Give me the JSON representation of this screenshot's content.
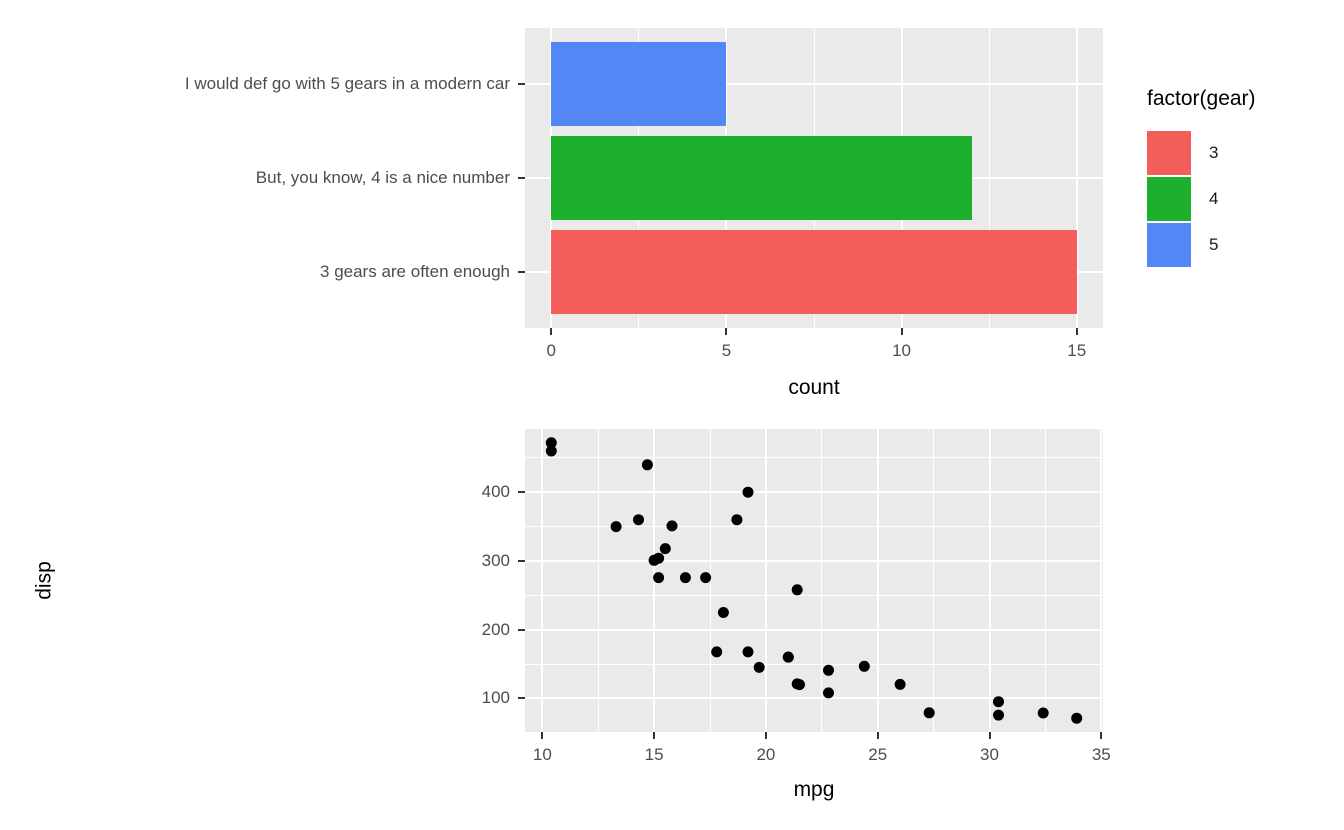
{
  "style": {
    "panel_bg": "#EAEAEA",
    "grid_color": "#FFFFFF",
    "tick_color": "#333333",
    "tick_label_color": "#4D4D4D",
    "axis_title_color": "#000000",
    "background": "#FFFFFF"
  },
  "chart_data": [
    {
      "type": "bar",
      "orientation": "horizontal",
      "title": "",
      "xlabel": "count",
      "ylabel": "",
      "grid": true,
      "rows": [
        {
          "label": "I would def go with 5 gears in a modern car",
          "gear": "5",
          "value": 5,
          "color": "#5287F5"
        },
        {
          "label": "But, you know, 4 is a nice number",
          "gear": "4",
          "value": 12,
          "color": "#1DB02C"
        },
        {
          "label": "3 gears are often enough",
          "gear": "3",
          "value": 15,
          "color": "#F35E5A"
        }
      ],
      "x_ticks": [
        0,
        5,
        10,
        15
      ],
      "x_minor": [
        2.5,
        7.5,
        12.5
      ],
      "xlim": [
        -0.75,
        15.75
      ],
      "ylim_units": [
        0.4,
        3.6
      ],
      "bar_width_units": 0.9,
      "legend": {
        "position": "right",
        "title": "factor(gear)",
        "entries": [
          {
            "label": "3",
            "color": "#F35E5A"
          },
          {
            "label": "4",
            "color": "#1DB02C"
          },
          {
            "label": "5",
            "color": "#5287F5"
          }
        ]
      }
    },
    {
      "type": "scatter",
      "title": "",
      "xlabel": "mpg",
      "ylabel": "disp",
      "grid": true,
      "x_ticks": [
        10,
        15,
        20,
        25,
        30,
        35
      ],
      "x_minor": [
        12.5,
        17.5,
        22.5,
        27.5,
        32.5
      ],
      "y_ticks": [
        100,
        200,
        300,
        400
      ],
      "y_minor": [
        150,
        250,
        350,
        450
      ],
      "xlim": [
        9.225,
        35.075
      ],
      "ylim": [
        51.05,
        492.05
      ],
      "point_color": "#000000",
      "point_radius": 5.5,
      "points": [
        [
          21.0,
          160.0
        ],
        [
          21.0,
          160.0
        ],
        [
          22.8,
          108.0
        ],
        [
          21.4,
          258.0
        ],
        [
          18.7,
          360.0
        ],
        [
          18.1,
          225.0
        ],
        [
          14.3,
          360.0
        ],
        [
          24.4,
          146.7
        ],
        [
          22.8,
          140.8
        ],
        [
          19.2,
          167.6
        ],
        [
          17.8,
          167.6
        ],
        [
          16.4,
          275.8
        ],
        [
          17.3,
          275.8
        ],
        [
          15.2,
          275.8
        ],
        [
          10.4,
          472.0
        ],
        [
          10.4,
          460.0
        ],
        [
          14.7,
          440.0
        ],
        [
          32.4,
          78.7
        ],
        [
          30.4,
          75.7
        ],
        [
          33.9,
          71.1
        ],
        [
          21.5,
          120.1
        ],
        [
          15.5,
          318.0
        ],
        [
          15.2,
          304.0
        ],
        [
          13.3,
          350.0
        ],
        [
          19.2,
          400.0
        ],
        [
          27.3,
          79.0
        ],
        [
          26.0,
          120.3
        ],
        [
          30.4,
          95.1
        ],
        [
          15.8,
          351.0
        ],
        [
          19.7,
          145.0
        ],
        [
          15.0,
          301.0
        ],
        [
          21.4,
          121.0
        ]
      ]
    }
  ]
}
